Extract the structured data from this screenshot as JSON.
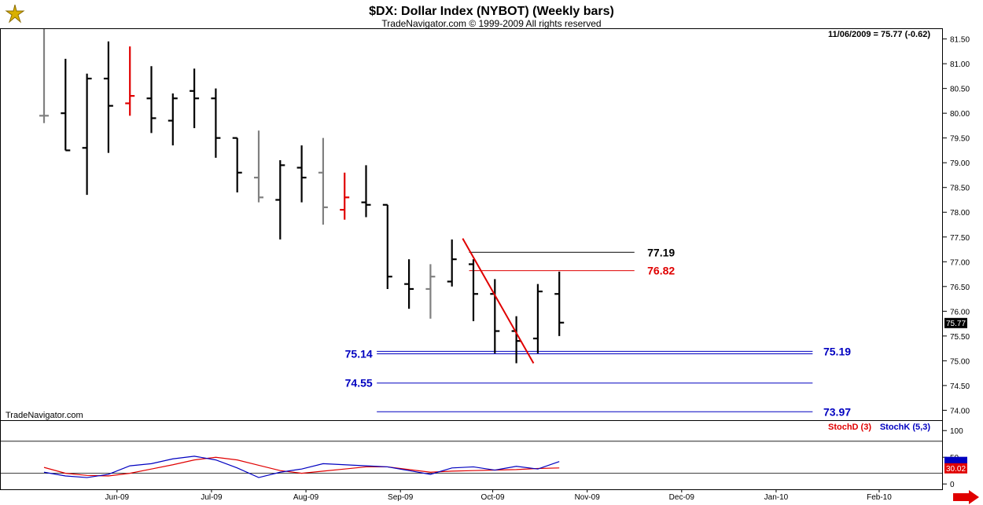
{
  "header": {
    "title": "$DX:  Dollar Index (NYBOT)  (Weekly bars)",
    "subtitle": "TradeNavigator.com © 1999-2009 All rights reserved",
    "last_bar_info": "11/06/2009 = 75.77 (-0.62)",
    "watermark": "TradeNavigator.com"
  },
  "chart_data": [
    {
      "type": "ohlc",
      "ylim": [
        73.8,
        81.7
      ],
      "yticks": [
        "81.50",
        "81.00",
        "80.50",
        "80.00",
        "79.50",
        "79.00",
        "78.50",
        "78.00",
        "77.50",
        "77.00",
        "76.50",
        "76.00",
        "75.50",
        "75.00",
        "74.50",
        "74.00"
      ],
      "x_labels": [
        {
          "label": "Jun-09",
          "week": 3.4
        },
        {
          "label": "Jul-09",
          "week": 7.8
        },
        {
          "label": "Aug-09",
          "week": 12.2
        },
        {
          "label": "Sep-09",
          "week": 16.6
        },
        {
          "label": "Oct-09",
          "week": 20.9
        },
        {
          "label": "Nov-09",
          "week": 25.3
        },
        {
          "label": "Dec-09",
          "week": 29.7
        },
        {
          "label": "Jan-10",
          "week": 34.1
        },
        {
          "label": "Feb-10",
          "week": 38.9
        }
      ],
      "last_price": "75.77",
      "bars": [
        {
          "o": 79.95,
          "h": 81.7,
          "l": 79.8,
          "c": 79.95,
          "color": "#808080"
        },
        {
          "o": 80.0,
          "h": 81.1,
          "l": 79.25,
          "c": 79.25,
          "color": "#000000"
        },
        {
          "o": 79.3,
          "h": 80.8,
          "l": 78.35,
          "c": 80.7,
          "color": "#000000"
        },
        {
          "o": 80.7,
          "h": 81.45,
          "l": 79.2,
          "c": 80.15,
          "color": "#000000"
        },
        {
          "o": 80.2,
          "h": 81.35,
          "l": 79.95,
          "c": 80.35,
          "color": "#e00000"
        },
        {
          "o": 80.3,
          "h": 80.95,
          "l": 79.6,
          "c": 79.9,
          "color": "#000000"
        },
        {
          "o": 79.85,
          "h": 80.4,
          "l": 79.35,
          "c": 80.3,
          "color": "#000000"
        },
        {
          "o": 80.45,
          "h": 80.9,
          "l": 79.7,
          "c": 80.3,
          "color": "#000000"
        },
        {
          "o": 80.3,
          "h": 80.5,
          "l": 79.1,
          "c": 79.5,
          "color": "#000000"
        },
        {
          "o": 79.5,
          "h": 79.5,
          "l": 78.4,
          "c": 78.8,
          "color": "#000000"
        },
        {
          "o": 78.7,
          "h": 79.65,
          "l": 78.2,
          "c": 78.3,
          "color": "#808080"
        },
        {
          "o": 78.25,
          "h": 79.05,
          "l": 77.45,
          "c": 78.95,
          "color": "#000000"
        },
        {
          "o": 78.9,
          "h": 79.35,
          "l": 78.2,
          "c": 78.7,
          "color": "#000000"
        },
        {
          "o": 78.8,
          "h": 79.5,
          "l": 77.75,
          "c": 78.1,
          "color": "#808080"
        },
        {
          "o": 78.05,
          "h": 78.8,
          "l": 77.85,
          "c": 78.3,
          "color": "#e00000"
        },
        {
          "o": 78.2,
          "h": 78.95,
          "l": 77.9,
          "c": 78.15,
          "color": "#000000"
        },
        {
          "o": 78.15,
          "h": 78.15,
          "l": 76.45,
          "c": 76.7,
          "color": "#000000"
        },
        {
          "o": 76.55,
          "h": 77.05,
          "l": 76.05,
          "c": 76.45,
          "color": "#000000"
        },
        {
          "o": 76.45,
          "h": 76.95,
          "l": 75.85,
          "c": 76.7,
          "color": "#808080"
        },
        {
          "o": 76.6,
          "h": 77.45,
          "l": 76.5,
          "c": 77.05,
          "color": "#000000"
        },
        {
          "o": 76.95,
          "h": 77.05,
          "l": 75.8,
          "c": 76.35,
          "color": "#000000"
        },
        {
          "o": 76.35,
          "h": 76.65,
          "l": 75.15,
          "c": 75.6,
          "color": "#000000"
        },
        {
          "o": 75.6,
          "h": 75.9,
          "l": 74.95,
          "c": 75.4,
          "color": "#000000"
        },
        {
          "o": 75.45,
          "h": 76.55,
          "l": 75.15,
          "c": 76.4,
          "color": "#000000"
        },
        {
          "o": 76.35,
          "h": 76.8,
          "l": 75.5,
          "c": 75.77,
          "color": "#000000"
        }
      ],
      "levels": [
        {
          "value": 77.19,
          "label": "77.19",
          "color": "#000000"
        },
        {
          "value": 76.82,
          "label": "76.82",
          "color": "#e00000"
        },
        {
          "value": 75.19,
          "label": "75.19",
          "color": "#0000c0"
        },
        {
          "value": 75.14,
          "label": "75.14",
          "color": "#0000c0"
        },
        {
          "value": 74.55,
          "label": "74.55",
          "color": "#0000c0"
        },
        {
          "value": 73.97,
          "label": "73.97",
          "color": "#0000c0"
        }
      ],
      "trend_line": {
        "from": {
          "week": 19.5,
          "value": 77.47
        },
        "to": {
          "week": 22.8,
          "value": 74.95
        },
        "color": "#e00000"
      }
    },
    {
      "type": "line",
      "ylim": [
        -10,
        118
      ],
      "yticks": [
        "100",
        "50",
        "0"
      ],
      "hlines": [
        80,
        20
      ],
      "legend": [
        "StochD (3)",
        "StochK (5,3)"
      ],
      "last_values": [
        "30.02"
      ],
      "series": [
        {
          "name": "StochD (3)",
          "color": "#e00000",
          "values": [
            31,
            20,
            16,
            15,
            20,
            28,
            36,
            45,
            50,
            45,
            35,
            25,
            20,
            24,
            28,
            32,
            32,
            27,
            22,
            24,
            25,
            26,
            27,
            29,
            30
          ]
        },
        {
          "name": "StochK (5,3)",
          "color": "#0000c0",
          "values": [
            22,
            15,
            12,
            18,
            34,
            38,
            47,
            52,
            45,
            30,
            12,
            22,
            28,
            38,
            36,
            34,
            32,
            25,
            18,
            30,
            32,
            26,
            33,
            28,
            42
          ]
        }
      ]
    }
  ]
}
